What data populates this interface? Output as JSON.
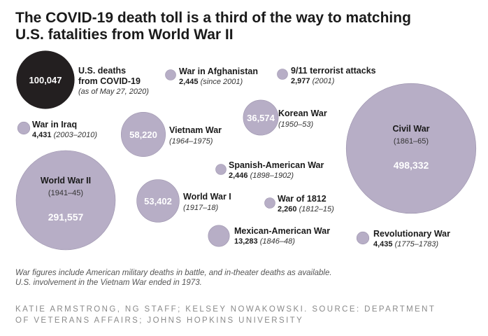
{
  "title_line1": "The COVID-19 death toll is a third of the way to matching",
  "title_line2": "U.S. fatalities from World War II",
  "notes": {
    "line1": "War figures include American military deaths in battle, and in-theater deaths as available.",
    "line2": "U.S. involvement in the Vietnam War ended in 1973."
  },
  "credit": {
    "line1": "KATIE ARMSTRONG, NG STAFF; KELSEY NOWAKOWSKI. SOURCE: DEPARTMENT",
    "line2": "OF VETERANS AFFAIRS; JOHNS HOPKINS UNIVERSITY"
  },
  "colors": {
    "covid": "#231f20",
    "war": "#b7aec6",
    "war_stroke": "#ffffff"
  },
  "chart_data": {
    "type": "bubble",
    "title": "The COVID-19 death toll is a third of the way to matching U.S. fatalities from World War II",
    "unit": "U.S. deaths",
    "items": [
      {
        "id": "covid",
        "name_lines": [
          "U.S. deaths",
          "from COVID-19"
        ],
        "value": 100047,
        "value_label": "100,047",
        "period": "as of May 27, 2020",
        "highlight": true
      },
      {
        "id": "afghanistan",
        "name": "War in Afghanistan",
        "value": 2445,
        "value_label": "2,445",
        "period": "since 2001"
      },
      {
        "id": "nine11",
        "name": "9/11 terrorist attacks",
        "value": 2977,
        "value_label": "2,977",
        "period": "2001"
      },
      {
        "id": "iraq",
        "name": "War in Iraq",
        "value": 4431,
        "value_label": "4,431",
        "period": "2003–2010"
      },
      {
        "id": "vietnam",
        "name": "Vietnam War",
        "value": 58220,
        "value_label": "58,220",
        "period": "1964–1975"
      },
      {
        "id": "korea",
        "name": "Korean War",
        "value": 36574,
        "value_label": "36,574",
        "period": "1950–53"
      },
      {
        "id": "civil",
        "name": "Civil War",
        "value": 498332,
        "value_label": "498,332",
        "period": "1861–65"
      },
      {
        "id": "spanish",
        "name": "Spanish-American War",
        "value": 2446,
        "value_label": "2,446",
        "period": "1898–1902"
      },
      {
        "id": "ww2",
        "name": "World War II",
        "value": 291557,
        "value_label": "291,557",
        "period": "1941–45"
      },
      {
        "id": "ww1",
        "name": "World War I",
        "value": 53402,
        "value_label": "53,402",
        "period": "1917–18"
      },
      {
        "id": "war1812",
        "name": "War of 1812",
        "value": 2260,
        "value_label": "2,260",
        "period": "1812–15"
      },
      {
        "id": "mexican",
        "name": "Mexican-American War",
        "value": 13283,
        "value_label": "13,283",
        "period": "1846–48"
      },
      {
        "id": "revolutionary",
        "name": "Revolutionary War",
        "value": 4435,
        "value_label": "4,435",
        "period": "1775–1783"
      }
    ]
  }
}
